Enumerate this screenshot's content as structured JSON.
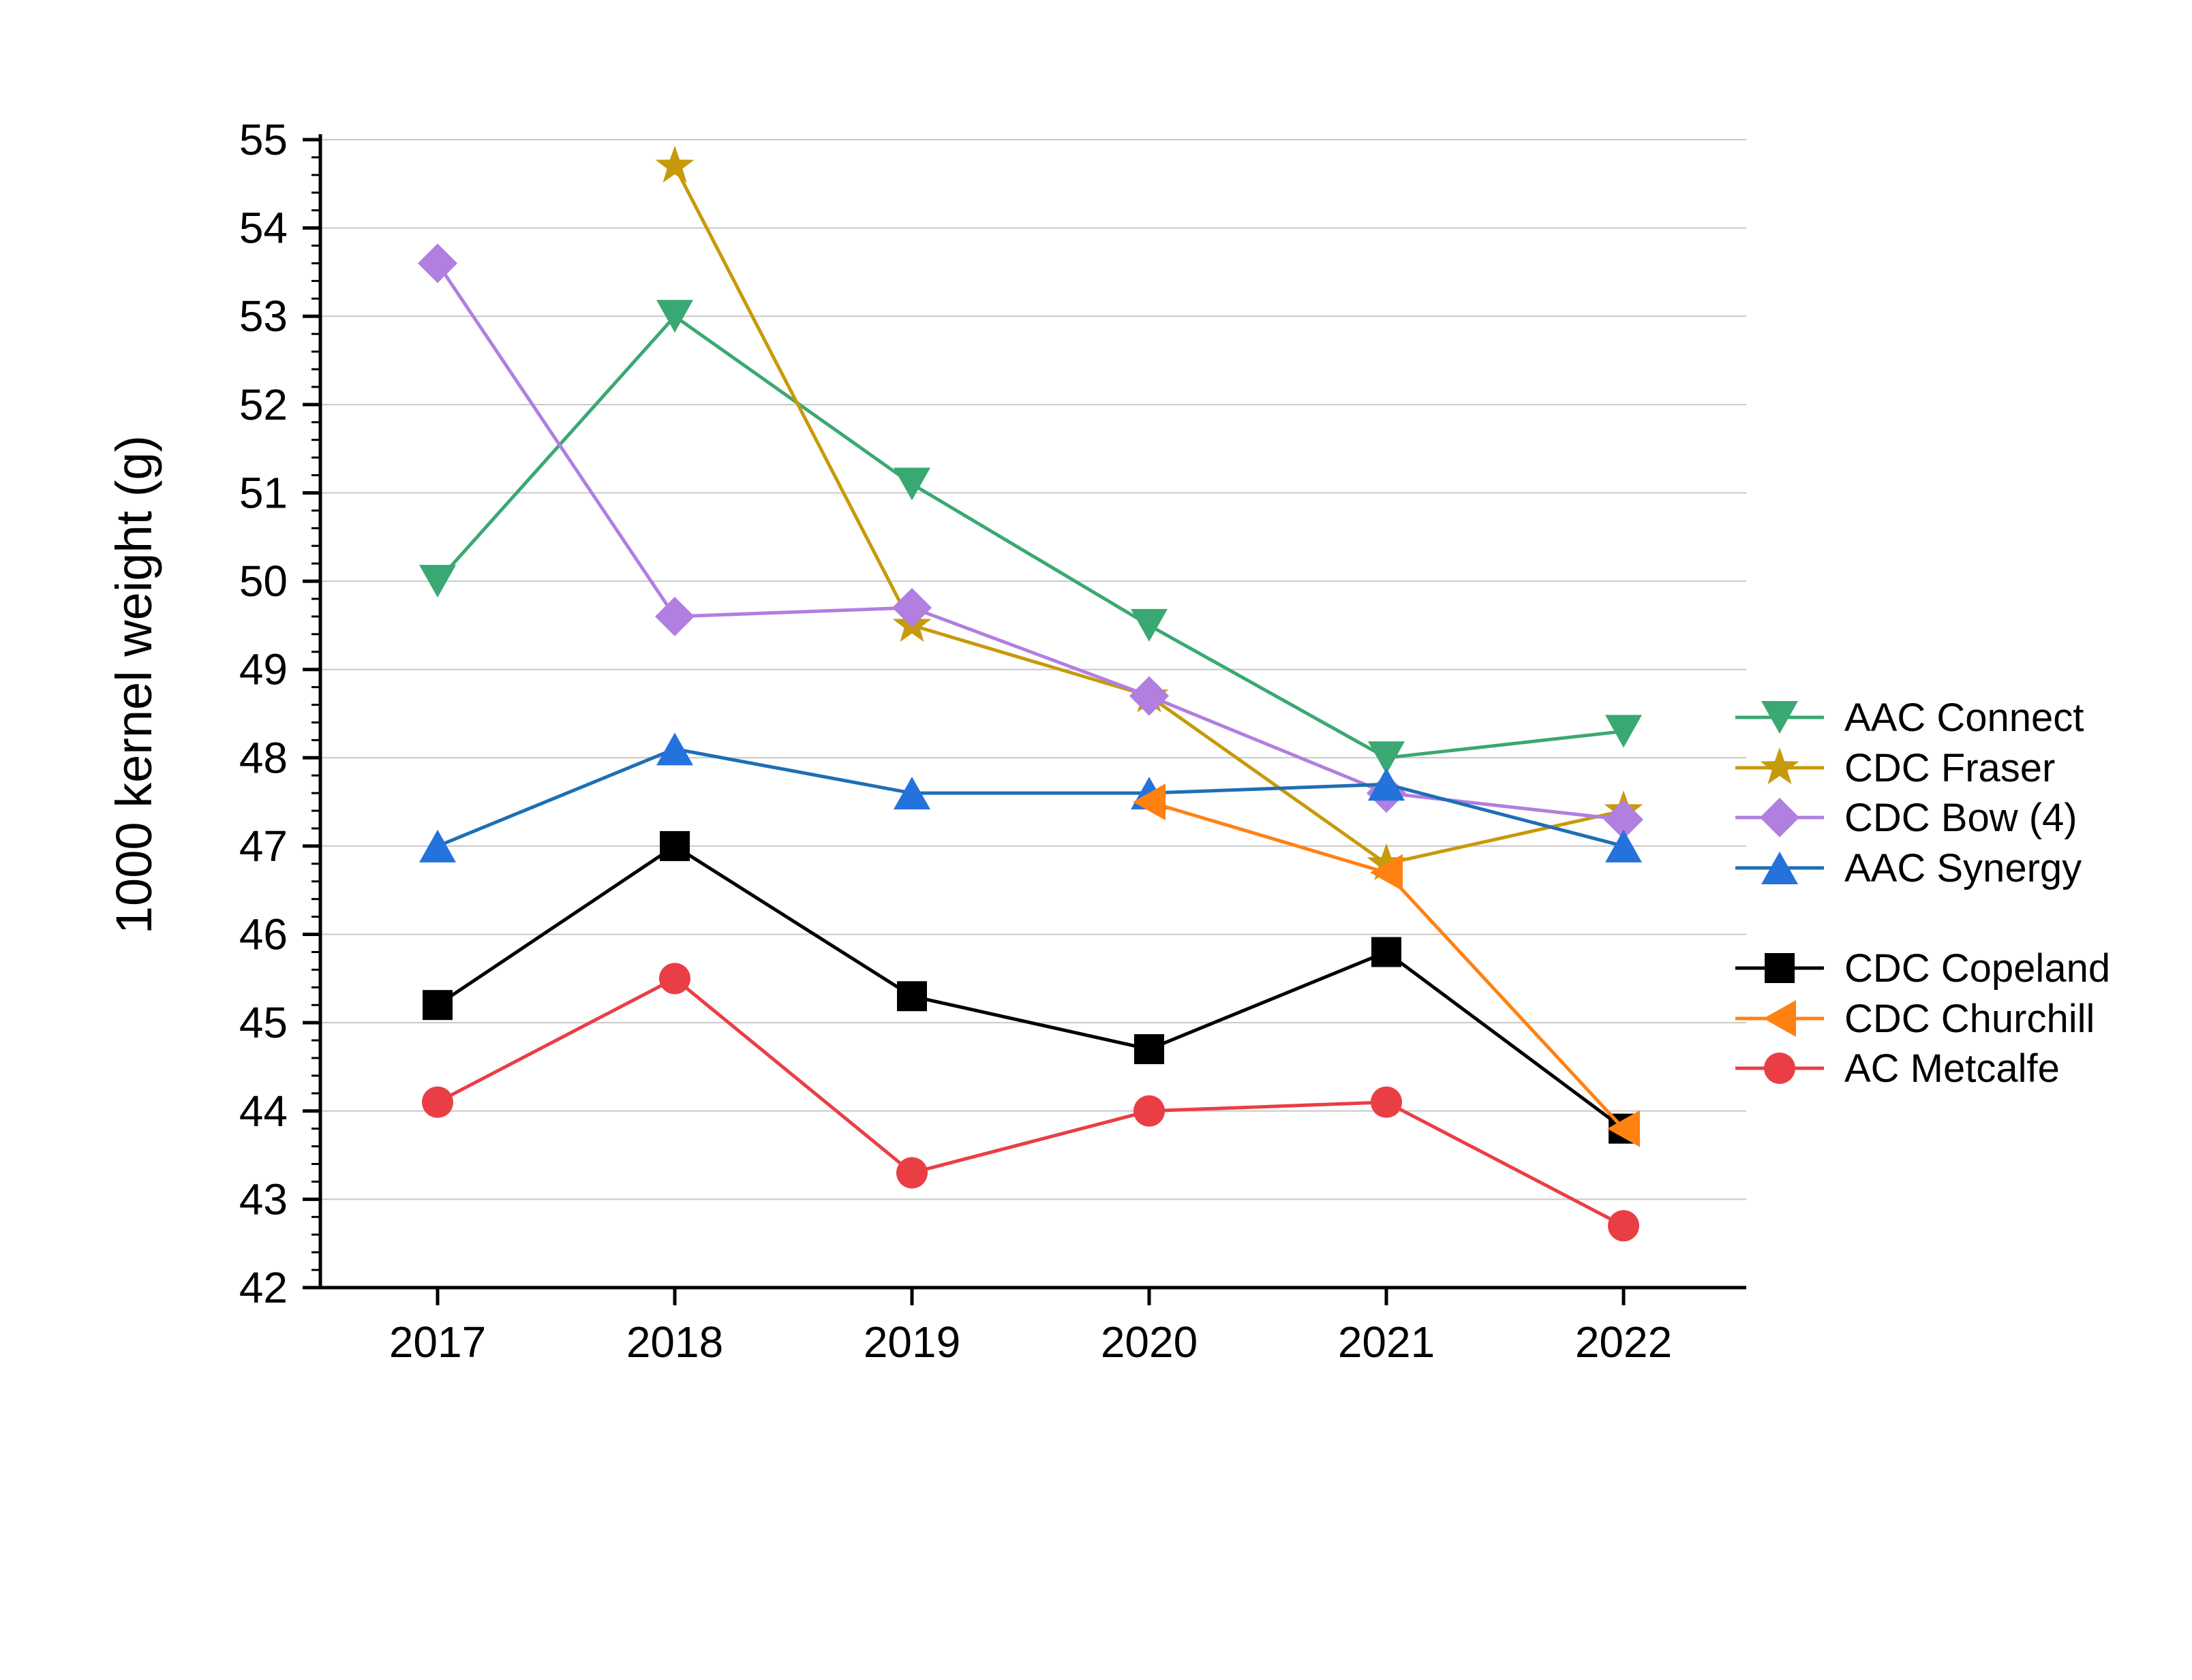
{
  "chart_data": {
    "type": "line",
    "title": "",
    "xlabel": "",
    "ylabel": "1000 kernel weight (g)",
    "x": [
      "2017",
      "2018",
      "2019",
      "2020",
      "2021",
      "2022"
    ],
    "ylim": [
      42,
      55
    ],
    "yticks": [
      "42",
      "43",
      "44",
      "45",
      "46",
      "47",
      "48",
      "49",
      "50",
      "51",
      "52",
      "53",
      "54",
      "55"
    ],
    "grid": "horizontal",
    "legend_position": "right",
    "series": [
      {
        "name": "AAC Connect",
        "marker": "triangle-down",
        "color": "#3aa872",
        "values": [
          50.0,
          53.0,
          51.1,
          49.5,
          48.0,
          48.3
        ]
      },
      {
        "name": "CDC Fraser",
        "marker": "star",
        "color": "#c79a0b",
        "values": [
          null,
          54.7,
          49.5,
          48.7,
          46.8,
          47.4
        ]
      },
      {
        "name": "CDC Bow  (4)",
        "marker": "diamond",
        "color": "#b07fe0",
        "values": [
          53.6,
          49.6,
          49.7,
          48.7,
          47.6,
          47.3
        ]
      },
      {
        "name": "AAC Synergy",
        "marker": "triangle-up",
        "color": "#1d6fb4",
        "marker_color": "#2472dc",
        "values": [
          47.0,
          48.1,
          47.6,
          47.6,
          47.7,
          47.0
        ]
      },
      {
        "name": "CDC Copeland",
        "marker": "square",
        "color": "#000000",
        "values": [
          45.2,
          47.0,
          45.3,
          44.7,
          45.8,
          43.8
        ]
      },
      {
        "name": "CDC Churchill",
        "marker": "triangle-left",
        "color": "#ff8112",
        "values": [
          null,
          null,
          null,
          47.5,
          46.7,
          43.8
        ]
      },
      {
        "name": "AC Metcalfe",
        "marker": "circle",
        "color": "#ea3e45",
        "values": [
          44.1,
          45.5,
          43.3,
          44.0,
          44.1,
          42.7
        ]
      }
    ]
  }
}
